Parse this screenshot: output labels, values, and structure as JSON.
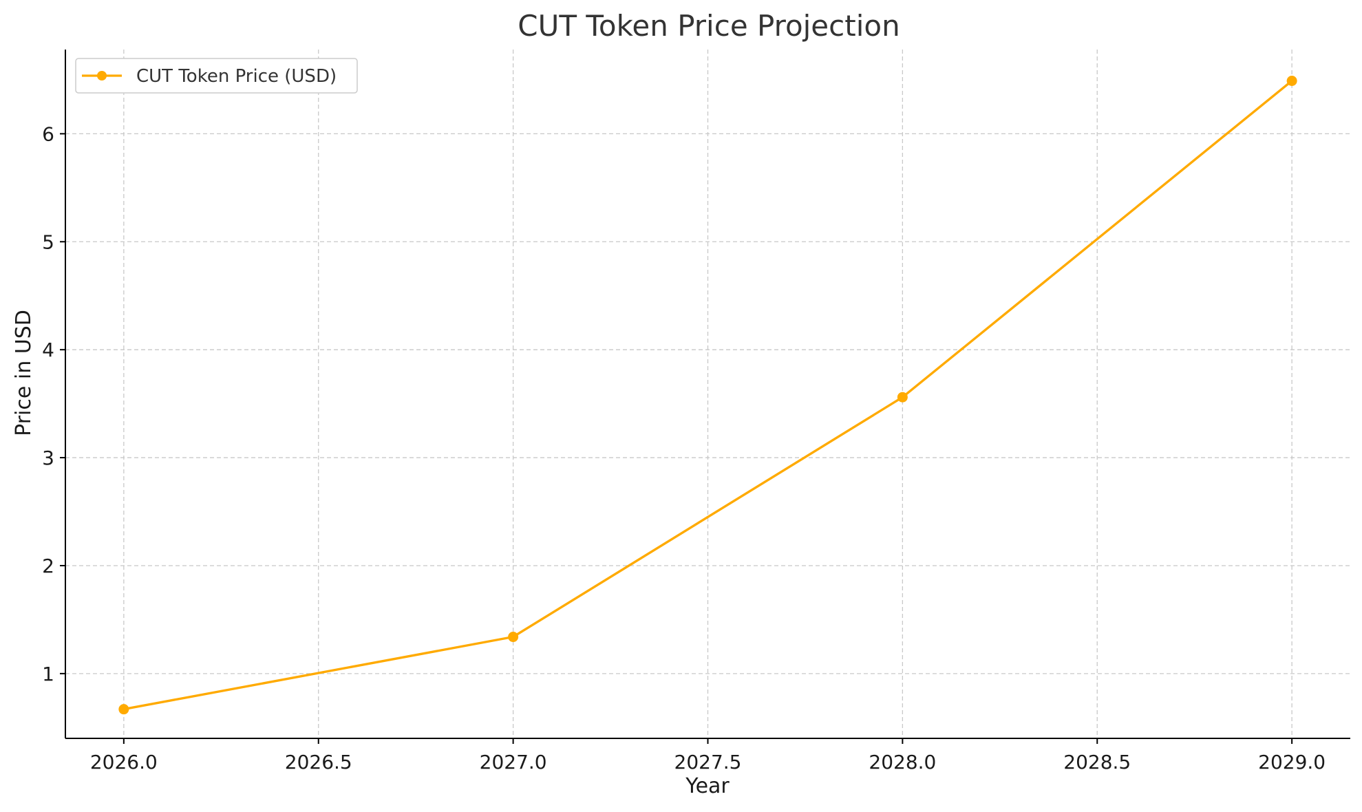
{
  "chart_data": {
    "type": "line",
    "title": "CUT Token Price Projection",
    "xlabel": "Year",
    "ylabel": "Price in USD",
    "xlim": [
      2025.85,
      2029.15
    ],
    "ylim": [
      0.4,
      6.78
    ],
    "x_ticks": [
      2026.0,
      2026.5,
      2027.0,
      2027.5,
      2028.0,
      2028.5,
      2029.0
    ],
    "x_tick_labels": [
      "2026.0",
      "2026.5",
      "2027.0",
      "2027.5",
      "2028.0",
      "2028.5",
      "2029.0"
    ],
    "y_ticks": [
      1,
      2,
      3,
      4,
      5,
      6
    ],
    "y_tick_labels": [
      "1",
      "2",
      "3",
      "4",
      "5",
      "6"
    ],
    "grid": true,
    "legend_position": "top-left",
    "series": [
      {
        "name": "CUT Token Price (USD)",
        "color": "#FFAA00",
        "marker": "circle",
        "x": [
          2026,
          2027,
          2028,
          2029
        ],
        "y": [
          0.67,
          1.34,
          3.56,
          6.49
        ]
      }
    ]
  }
}
